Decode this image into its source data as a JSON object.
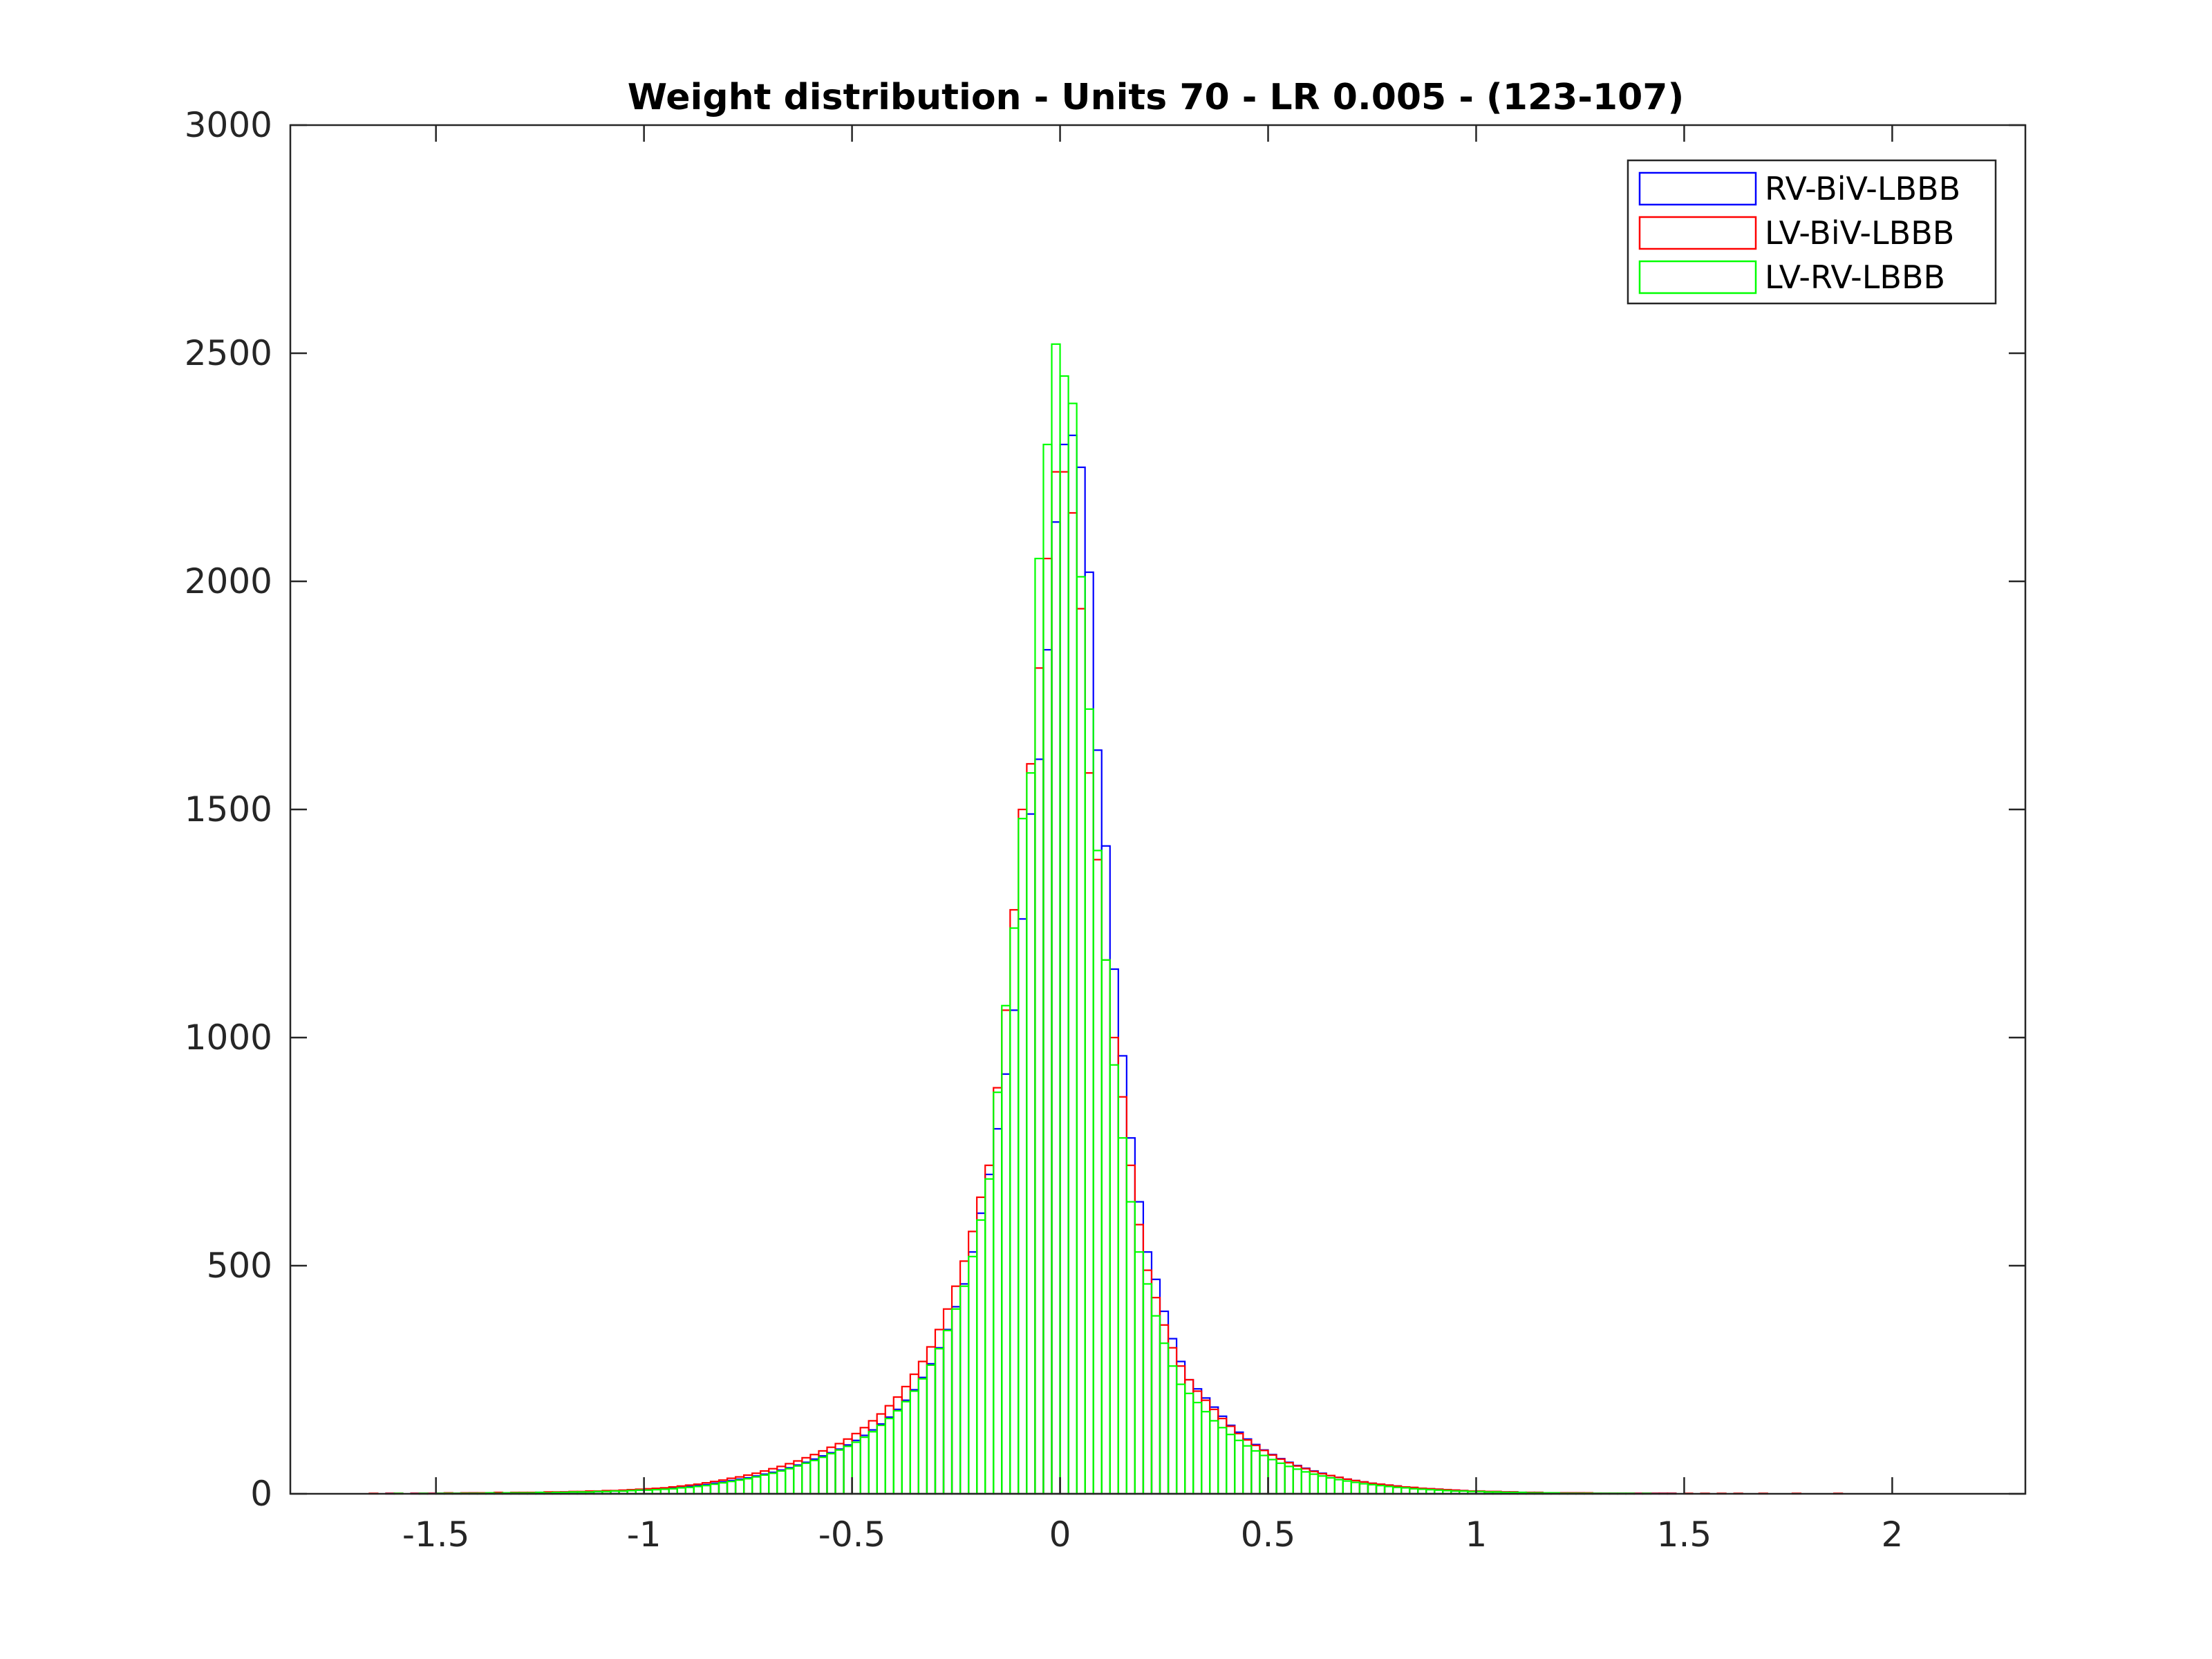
{
  "figure": {
    "background": "#ffffff"
  },
  "chart_data": {
    "type": "histogram",
    "title": "Weight distribution - Units 70 - LR 0.005 - (123-107)",
    "xlabel": "",
    "ylabel": "",
    "xlim": [
      -1.85,
      2.32
    ],
    "ylim": [
      0,
      3000
    ],
    "x_ticks": [
      -1.5,
      -1,
      -0.5,
      0,
      0.5,
      1,
      1.5,
      2
    ],
    "x_tick_labels": [
      "-1.5",
      "-1",
      "-0.5",
      "0",
      "0.5",
      "1",
      "1.5",
      "2"
    ],
    "y_ticks": [
      0,
      500,
      1000,
      1500,
      2000,
      2500,
      3000
    ],
    "y_tick_labels": [
      "0",
      "500",
      "1000",
      "1500",
      "2000",
      "2500",
      "3000"
    ],
    "grid": false,
    "legend_position": "top-right",
    "bin_width": 0.02,
    "x": [
      -1.65,
      -1.63,
      -1.61,
      -1.59,
      -1.57,
      -1.55,
      -1.53,
      -1.51,
      -1.49,
      -1.47,
      -1.45,
      -1.43,
      -1.41,
      -1.39,
      -1.37,
      -1.35,
      -1.33,
      -1.31,
      -1.29,
      -1.27,
      -1.25,
      -1.23,
      -1.21,
      -1.19,
      -1.17,
      -1.15,
      -1.13,
      -1.11,
      -1.09,
      -1.07,
      -1.05,
      -1.03,
      -1.01,
      -0.99,
      -0.97,
      -0.95,
      -0.93,
      -0.91,
      -0.89,
      -0.87,
      -0.85,
      -0.83,
      -0.81,
      -0.79,
      -0.77,
      -0.75,
      -0.73,
      -0.71,
      -0.69,
      -0.67,
      -0.65,
      -0.63,
      -0.61,
      -0.59,
      -0.57,
      -0.55,
      -0.53,
      -0.51,
      -0.49,
      -0.47,
      -0.45,
      -0.43,
      -0.41,
      -0.39,
      -0.37,
      -0.35,
      -0.33,
      -0.31,
      -0.29,
      -0.27,
      -0.25,
      -0.23,
      -0.21,
      -0.19,
      -0.17,
      -0.15,
      -0.13,
      -0.11,
      -0.09,
      -0.07,
      -0.05,
      -0.03,
      -0.01,
      0.01,
      0.03,
      0.05,
      0.07,
      0.09,
      0.11,
      0.13,
      0.15,
      0.17,
      0.19,
      0.21,
      0.23,
      0.25,
      0.27,
      0.29,
      0.31,
      0.33,
      0.35,
      0.37,
      0.39,
      0.41,
      0.43,
      0.45,
      0.47,
      0.49,
      0.51,
      0.53,
      0.55,
      0.57,
      0.59,
      0.61,
      0.63,
      0.65,
      0.67,
      0.69,
      0.71,
      0.73,
      0.75,
      0.77,
      0.79,
      0.81,
      0.83,
      0.85,
      0.87,
      0.89,
      0.91,
      0.93,
      0.95,
      0.97,
      0.99,
      1.01,
      1.03,
      1.05,
      1.07,
      1.09,
      1.11,
      1.13,
      1.15,
      1.17,
      1.19,
      1.21,
      1.23,
      1.25,
      1.27,
      1.29,
      1.31,
      1.33,
      1.35,
      1.37,
      1.39,
      1.41,
      1.43,
      1.45,
      1.47,
      1.49,
      1.51,
      1.53,
      1.55,
      1.57,
      1.59,
      1.61,
      1.63,
      1.65,
      1.67,
      1.69,
      1.71,
      1.73,
      1.75,
      1.77,
      1.79,
      1.81,
      1.83,
      1.85,
      1.87,
      1.89,
      1.91,
      1.93,
      1.95,
      1.97,
      1.99,
      2.01,
      2.03,
      2.05,
      2.07,
      2.09,
      2.11,
      2.13
    ],
    "series": [
      {
        "name": "RV-BiV-LBBB",
        "color": "#0000ff",
        "values": [
          0,
          0,
          1,
          0,
          0,
          1,
          1,
          1,
          1,
          1,
          1,
          1,
          2,
          1,
          2,
          2,
          2,
          2,
          2,
          2,
          3,
          3,
          3,
          4,
          4,
          4,
          5,
          5,
          6,
          6,
          7,
          7,
          8,
          9,
          10,
          11,
          12,
          14,
          16,
          18,
          20,
          23,
          26,
          29,
          32,
          35,
          39,
          43,
          47,
          52,
          57,
          63,
          69,
          76,
          83,
          90,
          98,
          107,
          117,
          128,
          140,
          153,
          168,
          185,
          205,
          228,
          255,
          285,
          320,
          360,
          410,
          460,
          530,
          615,
          700,
          800,
          920,
          1060,
          1260,
          1490,
          1610,
          1850,
          2130,
          2300,
          2320,
          2250,
          2020,
          1630,
          1420,
          1150,
          960,
          780,
          640,
          530,
          470,
          400,
          340,
          290,
          250,
          230,
          210,
          190,
          170,
          150,
          135,
          120,
          108,
          96,
          86,
          77,
          69,
          62,
          56,
          50,
          45,
          40,
          36,
          32,
          29,
          26,
          23,
          21,
          19,
          17,
          15,
          13,
          12,
          11,
          10,
          9,
          8,
          7,
          6,
          6,
          5,
          5,
          4,
          4,
          3,
          3,
          3,
          2,
          2,
          2,
          2,
          2,
          1,
          1,
          1,
          1,
          1,
          1,
          1,
          1,
          1,
          1,
          1,
          0,
          0,
          0,
          0,
          0,
          0,
          0,
          0,
          0,
          0,
          0,
          0,
          0,
          0,
          0,
          0,
          0,
          0,
          0,
          0,
          0,
          0,
          0,
          0,
          0,
          0,
          0,
          0,
          0,
          0,
          0,
          0
        ]
      },
      {
        "name": "LV-BiV-LBBB",
        "color": "#ff0000",
        "values": [
          1,
          0,
          1,
          1,
          0,
          1,
          1,
          1,
          1,
          2,
          1,
          2,
          2,
          2,
          2,
          3,
          2,
          3,
          3,
          3,
          3,
          4,
          4,
          4,
          5,
          5,
          6,
          6,
          7,
          7,
          8,
          9,
          10,
          11,
          12,
          13,
          15,
          17,
          19,
          21,
          24,
          27,
          30,
          34,
          37,
          41,
          45,
          50,
          55,
          60,
          66,
          72,
          79,
          86,
          94,
          102,
          110,
          120,
          132,
          145,
          160,
          175,
          193,
          212,
          235,
          262,
          290,
          322,
          360,
          405,
          455,
          510,
          575,
          650,
          720,
          890,
          1060,
          1280,
          1500,
          1600,
          1810,
          2050,
          2240,
          2240,
          2150,
          1940,
          1580,
          1390,
          1170,
          1000,
          870,
          720,
          590,
          490,
          430,
          370,
          320,
          280,
          250,
          225,
          205,
          185,
          165,
          148,
          132,
          118,
          106,
          95,
          85,
          76,
          68,
          61,
          55,
          49,
          44,
          40,
          36,
          32,
          29,
          26,
          23,
          21,
          19,
          17,
          15,
          14,
          12,
          11,
          10,
          9,
          8,
          7,
          6,
          6,
          5,
          5,
          4,
          4,
          3,
          3,
          3,
          2,
          2,
          2,
          2,
          2,
          2,
          1,
          1,
          1,
          1,
          1,
          1,
          1,
          1,
          1,
          1,
          0,
          1,
          0,
          1,
          0,
          1,
          0,
          1,
          0,
          0,
          1,
          0,
          0,
          0,
          1,
          0,
          0,
          0,
          0,
          1,
          0,
          0,
          0
        ]
      },
      {
        "name": "LV-RV-LBBB",
        "color": "#00ff00",
        "values": [
          0,
          0,
          0,
          1,
          0,
          0,
          1,
          0,
          1,
          1,
          1,
          1,
          1,
          1,
          2,
          1,
          2,
          2,
          2,
          2,
          3,
          2,
          3,
          3,
          4,
          4,
          4,
          5,
          5,
          6,
          6,
          7,
          8,
          8,
          9,
          10,
          11,
          13,
          14,
          16,
          18,
          21,
          24,
          27,
          30,
          33,
          37,
          41,
          45,
          50,
          55,
          61,
          67,
          73,
          80,
          88,
          96,
          104,
          113,
          124,
          136,
          150,
          165,
          182,
          202,
          225,
          252,
          282,
          318,
          358,
          405,
          455,
          520,
          600,
          690,
          880,
          1070,
          1240,
          1480,
          1580,
          2050,
          2300,
          2520,
          2450,
          2390,
          2010,
          1720,
          1410,
          1170,
          940,
          780,
          640,
          530,
          460,
          390,
          330,
          280,
          240,
          220,
          200,
          180,
          160,
          145,
          130,
          117,
          105,
          94,
          84,
          75,
          67,
          60,
          54,
          48,
          43,
          39,
          35,
          31,
          28,
          25,
          22,
          20,
          18,
          16,
          14,
          13,
          11,
          10,
          9,
          8,
          7,
          6,
          6,
          5,
          5,
          4,
          4,
          3,
          3,
          3,
          2,
          2,
          2,
          2,
          1,
          1,
          1,
          1,
          1,
          1,
          1,
          1,
          1,
          0,
          1,
          0,
          0,
          0,
          0,
          0,
          0,
          0,
          0,
          0,
          0,
          0,
          0,
          0,
          0,
          0,
          0,
          0,
          0,
          0,
          0,
          0,
          0,
          0,
          0,
          0
        ]
      }
    ]
  }
}
